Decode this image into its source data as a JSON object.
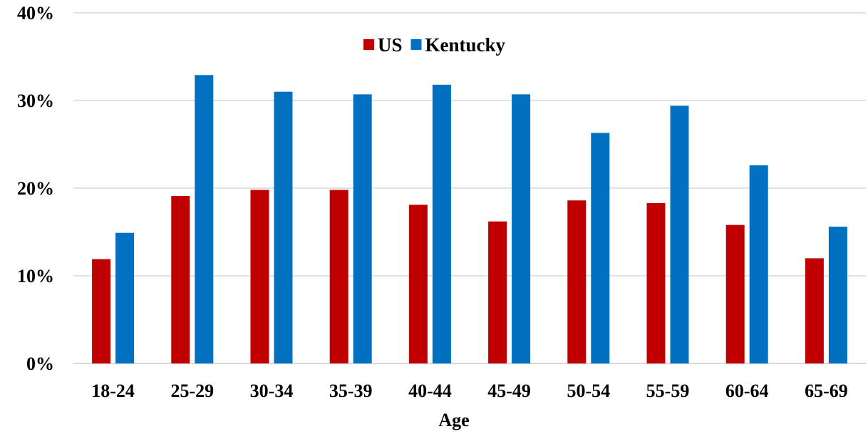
{
  "chart_data": {
    "type": "bar",
    "categories": [
      "18-24",
      "25-29",
      "30-34",
      "35-39",
      "40-44",
      "45-49",
      "50-54",
      "55-59",
      "60-64",
      "65-69"
    ],
    "series": [
      {
        "name": "US",
        "color": "#c00000",
        "values": [
          11.9,
          19.1,
          19.8,
          19.8,
          18.1,
          16.2,
          18.6,
          18.3,
          15.8,
          12.0
        ]
      },
      {
        "name": "Kentucky",
        "color": "#0070c0",
        "values": [
          14.9,
          32.9,
          31.0,
          30.7,
          31.8,
          30.7,
          26.3,
          29.4,
          22.6,
          15.6
        ]
      }
    ],
    "title": "",
    "xlabel": "Age",
    "ylabel": "",
    "ylim": [
      0,
      40
    ],
    "yticks": [
      "0%",
      "10%",
      "20%",
      "30%",
      "40%"
    ],
    "grid": true,
    "legend_position": "top-center"
  }
}
